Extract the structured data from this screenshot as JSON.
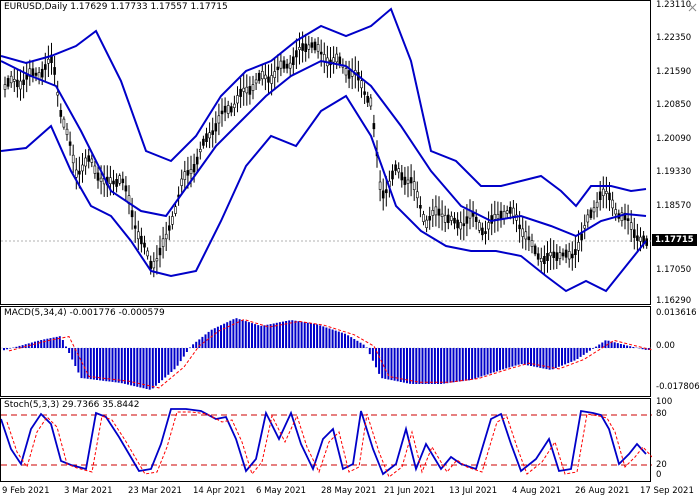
{
  "main": {
    "symbol_label": "EURUSD,Daily",
    "ohlc": "1.17629 1.17733 1.17557 1.17715",
    "current_price": "1.17715",
    "price_labels": [
      "1.23110",
      "1.22350",
      "1.21590",
      "1.20850",
      "1.20090",
      "1.19330",
      "1.18570",
      "1.17715",
      "1.17050",
      "1.16290"
    ]
  },
  "macd": {
    "title": "MACD(5,34,4) -0.001776 -0.000579",
    "labels": [
      "0.013616",
      "0.00",
      "-0.017806"
    ]
  },
  "stoch": {
    "title": "Stoch(5,3,3) 29.7366 35.8442",
    "labels": [
      "100",
      "80",
      "20",
      "0"
    ]
  },
  "x_axis": [
    "9 Feb 2021",
    "3 Mar 2021",
    "23 Mar 2021",
    "14 Apr 2021",
    "6 May 2021",
    "28 May 2021",
    "21 Jun 2021",
    "13 Jul 2021",
    "4 Aug 2021",
    "26 Aug 2021",
    "17 Sep 2021"
  ],
  "colors": {
    "bands": "#0000c8",
    "candle": "#000000",
    "macd_hist": "#0000c8",
    "signal": "#ff0000",
    "stoch_main": "#0000c8",
    "stoch_signal": "#ff0000",
    "level": "#cc0000"
  }
}
